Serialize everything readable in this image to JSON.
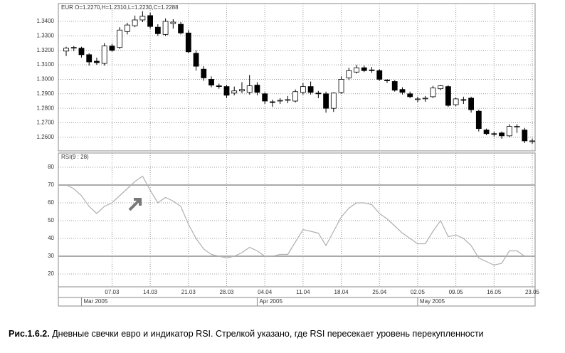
{
  "chart_data": [
    {
      "type": "candlestick",
      "title": "EUR O=1.2270,H=1.2310,L=1.2230,C=1.2288",
      "open": [
        1.3195,
        1.3215,
        1.3215,
        1.317,
        1.3125,
        1.311,
        1.323,
        1.322,
        1.333,
        1.337,
        1.341,
        1.344,
        1.336,
        1.331,
        1.3385,
        1.338,
        1.332,
        1.318,
        1.307,
        1.3,
        1.2955,
        1.295,
        1.2905,
        1.292,
        1.291,
        1.296,
        1.29,
        1.2845,
        1.285,
        1.2855,
        1.285,
        1.291,
        1.295,
        1.2905,
        1.29,
        1.28,
        1.291,
        1.301,
        1.305,
        1.308,
        1.3065,
        1.306,
        1.2995,
        1.2985,
        1.293,
        1.29,
        1.286,
        1.2865,
        1.288,
        1.2935,
        1.295,
        1.2825,
        1.286,
        1.287,
        1.278,
        1.265,
        1.2625,
        1.263,
        1.261,
        1.267,
        1.265,
        1.257
      ],
      "high": [
        1.3225,
        1.323,
        1.3225,
        1.318,
        1.315,
        1.325,
        1.3245,
        1.336,
        1.339,
        1.344,
        1.347,
        1.346,
        1.338,
        1.342,
        1.3415,
        1.3395,
        1.334,
        1.32,
        1.309,
        1.302,
        1.297,
        1.296,
        1.295,
        1.298,
        1.303,
        1.298,
        1.291,
        1.286,
        1.287,
        1.2885,
        1.293,
        1.2975,
        1.2985,
        1.292,
        1.2915,
        1.291,
        1.302,
        1.308,
        1.31,
        1.3095,
        1.3085,
        1.307,
        1.3,
        1.2995,
        1.2945,
        1.2915,
        1.288,
        1.2885,
        1.2955,
        1.296,
        1.296,
        1.2875,
        1.288,
        1.288,
        1.279,
        1.266,
        1.264,
        1.264,
        1.269,
        1.269,
        1.2665,
        1.259
      ],
      "low": [
        1.316,
        1.3195,
        1.315,
        1.3095,
        1.31,
        1.3095,
        1.319,
        1.321,
        1.331,
        1.336,
        1.3395,
        1.335,
        1.33,
        1.33,
        1.335,
        1.331,
        1.318,
        1.306,
        1.299,
        1.2945,
        1.2935,
        1.287,
        1.289,
        1.2905,
        1.2895,
        1.289,
        1.283,
        1.281,
        1.283,
        1.2835,
        1.284,
        1.2895,
        1.2895,
        1.287,
        1.277,
        1.2775,
        1.29,
        1.2995,
        1.304,
        1.305,
        1.3045,
        1.299,
        1.2975,
        1.2915,
        1.2895,
        1.287,
        1.284,
        1.2845,
        1.287,
        1.2925,
        1.281,
        1.2815,
        1.283,
        1.277,
        1.264,
        1.2615,
        1.2605,
        1.259,
        1.26,
        1.263,
        1.256,
        1.2555
      ],
      "close": [
        1.3215,
        1.322,
        1.317,
        1.312,
        1.3115,
        1.323,
        1.32,
        1.334,
        1.3375,
        1.341,
        1.3435,
        1.3365,
        1.3315,
        1.34,
        1.3395,
        1.332,
        1.319,
        1.309,
        1.301,
        1.296,
        1.295,
        1.289,
        1.292,
        1.293,
        1.2955,
        1.291,
        1.285,
        1.284,
        1.2855,
        1.286,
        1.2915,
        1.295,
        1.291,
        1.29,
        1.28,
        1.2905,
        1.3,
        1.306,
        1.308,
        1.306,
        1.306,
        1.3,
        1.299,
        1.2925,
        1.291,
        1.288,
        1.2865,
        1.287,
        1.294,
        1.2955,
        1.282,
        1.2865,
        1.2855,
        1.279,
        1.266,
        1.2625,
        1.262,
        1.261,
        1.2675,
        1.2675,
        1.2575,
        1.2575
      ],
      "ylim": [
        1.2506,
        1.3523
      ],
      "yticks": [
        {
          "value": 1.26,
          "label": "1.2600"
        },
        {
          "value": 1.27,
          "label": "1.2700"
        },
        {
          "value": 1.28,
          "label": "1.2800"
        },
        {
          "value": 1.29,
          "label": "1.2900"
        },
        {
          "value": 1.3,
          "label": "1.3000"
        },
        {
          "value": 1.31,
          "label": "1.3100"
        },
        {
          "value": 1.32,
          "label": "1.3200"
        },
        {
          "value": 1.33,
          "label": "1.3300"
        },
        {
          "value": 1.34,
          "label": "1.3400"
        }
      ],
      "grid": true,
      "up_color": "#ffffff",
      "down_color": "#000000"
    },
    {
      "type": "line",
      "title": "RSI(9 : 28)",
      "categories": [
        null,
        null,
        null,
        null,
        null,
        null,
        "07.03",
        null,
        null,
        null,
        null,
        "14.03",
        null,
        null,
        null,
        null,
        "21.03",
        null,
        null,
        null,
        null,
        "28.03",
        null,
        null,
        null,
        null,
        "04.04",
        null,
        null,
        null,
        null,
        "11.04",
        null,
        null,
        null,
        null,
        "18.04",
        null,
        null,
        null,
        null,
        "25.04",
        null,
        null,
        null,
        null,
        "02.05",
        null,
        null,
        null,
        null,
        "09.05",
        null,
        null,
        null,
        null,
        "16.05",
        null,
        null,
        null,
        null,
        "23.05"
      ],
      "values": [
        70,
        68,
        64,
        58,
        54,
        58,
        60,
        64,
        68,
        72,
        75,
        67,
        60,
        63,
        61,
        58,
        48,
        40,
        34,
        31,
        30,
        29,
        30,
        32,
        35,
        33,
        30,
        30,
        31,
        31,
        38,
        45,
        44,
        43,
        36,
        44,
        52,
        57,
        60,
        60,
        59,
        54,
        51,
        47,
        43,
        40,
        37,
        37,
        44,
        50,
        41,
        42,
        40,
        36,
        29,
        27,
        25,
        26,
        33,
        33,
        30,
        30
      ],
      "color": "#b0b0b0",
      "ylim": [
        12.8,
        88
      ],
      "yticks": [
        20,
        30,
        40,
        50,
        60,
        70,
        80
      ],
      "levels": [
        70,
        30
      ],
      "grid": true,
      "x_groups": [
        {
          "label": "Mar 2005",
          "start": 2
        },
        {
          "label": "Apr 2005",
          "start": 25
        },
        {
          "label": "May 2005",
          "start": 46
        }
      ]
    }
  ],
  "caption": {
    "label": "Рис.1.6.2.",
    "text": "Дневные свечки евро и индикатор RSI. Стрелкой указано, где RSI пересекает уровень перекупленности"
  }
}
